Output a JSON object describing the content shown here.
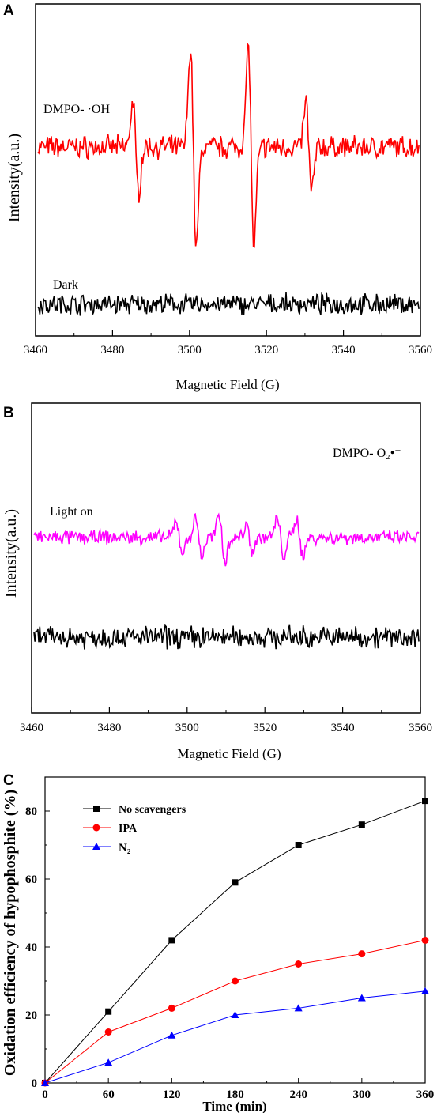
{
  "chart_data": [
    {
      "panel": "A",
      "type": "line",
      "xlabel": "Magnetic Field (G)",
      "ylabel": "Intensity(a.u.)",
      "xlim": [
        3460,
        3560
      ],
      "xticks": [
        "3460",
        "3480",
        "3500",
        "3520",
        "3540",
        "3560"
      ],
      "annotations": [
        "DMPO- ·OH",
        "Dark"
      ],
      "series": [
        {
          "name": "DMPO- ·OH",
          "color": "#ff0000",
          "peaks_x": [
            3486,
            3501,
            3516,
            3531
          ],
          "peak_relative_amplitudes": [
            0.45,
            1.0,
            1.0,
            0.45
          ]
        },
        {
          "name": "Dark",
          "color": "#000000",
          "peaks_x": [],
          "peak_relative_amplitudes": []
        }
      ]
    },
    {
      "panel": "B",
      "type": "line",
      "xlabel": "Magnetic Field (G)",
      "ylabel": "Intensity(a.u.)",
      "xlim": [
        3460,
        3560
      ],
      "xticks": [
        "3460",
        "3480",
        "3500",
        "3520",
        "3540",
        "3560"
      ],
      "annotations": [
        "DMPO- O₂•⁻",
        "Light on"
      ],
      "series": [
        {
          "name": "Light on",
          "color": "#ff00ff",
          "peaks_x": [
            3498,
            3503,
            3509,
            3516,
            3524,
            3529
          ],
          "peak_relative_amplitudes": [
            0.5,
            0.6,
            0.7,
            0.4,
            0.6,
            0.6
          ]
        },
        {
          "name": "",
          "color": "#000000",
          "peaks_x": [],
          "peak_relative_amplitudes": []
        }
      ]
    },
    {
      "panel": "C",
      "type": "line",
      "xlabel": "Time (min)",
      "ylabel": "Oxidation efficiency of hypophosphite (%)",
      "xlim": [
        0,
        360
      ],
      "ylim": [
        0,
        90
      ],
      "xticks": [
        "0",
        "60",
        "120",
        "180",
        "240",
        "300",
        "360"
      ],
      "yticks": [
        "0",
        "20",
        "40",
        "60",
        "80"
      ],
      "legend_position": "top-left",
      "x": [
        0,
        60,
        120,
        180,
        240,
        300,
        360
      ],
      "series": [
        {
          "name": "No scavengers",
          "color": "#000000",
          "marker": "square",
          "values": [
            0,
            21,
            42,
            59,
            70,
            76,
            83
          ]
        },
        {
          "name": "IPA",
          "color": "#ff0000",
          "marker": "circle",
          "values": [
            0,
            15,
            22,
            30,
            35,
            38,
            42
          ]
        },
        {
          "name": "N₂",
          "color": "#0000ff",
          "marker": "triangle",
          "values": [
            0,
            6,
            14,
            20,
            22,
            25,
            27
          ]
        }
      ]
    }
  ]
}
